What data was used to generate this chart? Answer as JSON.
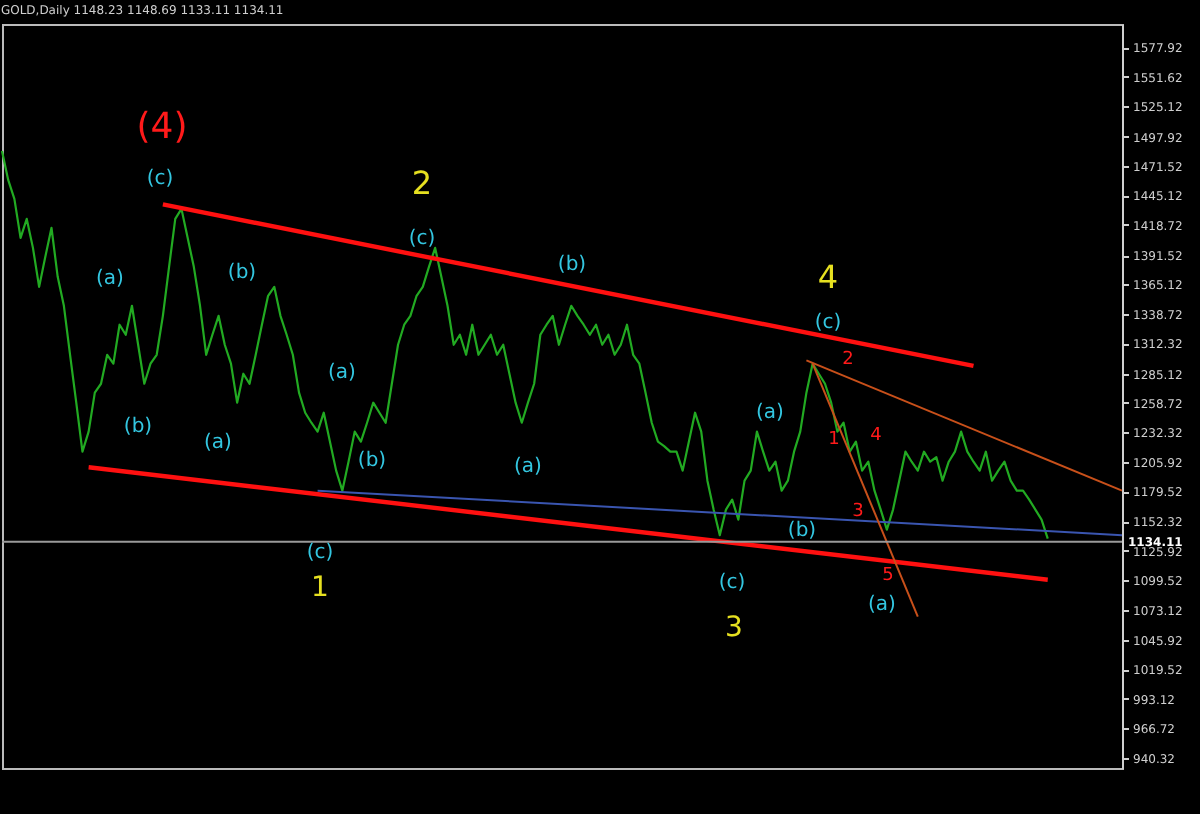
{
  "chart_data": {
    "type": "line",
    "title": "GOLD,Daily  1148.23 1148.69 1133.11 1134.11",
    "categories": [
      null,
      null,
      null,
      null,
      null,
      null,
      null,
      null,
      null,
      null,
      null,
      null,
      null,
      null,
      null,
      null,
      null,
      null,
      null,
      null,
      null,
      null,
      null,
      null,
      null,
      null,
      null,
      null,
      null,
      null,
      null,
      null,
      null,
      null,
      null,
      null,
      null,
      null,
      null,
      null,
      null,
      null,
      null,
      null,
      null,
      null,
      null,
      null,
      null,
      null,
      null,
      null,
      null,
      null,
      null,
      null,
      null,
      null,
      null,
      null,
      null,
      null,
      null,
      null,
      null,
      null,
      null,
      null,
      null,
      null,
      null,
      null,
      null,
      null,
      null,
      null,
      null,
      null,
      null,
      null,
      null,
      null,
      null,
      null,
      null,
      null,
      null,
      null,
      null,
      null,
      null,
      null,
      null,
      null,
      null,
      null,
      null,
      null,
      null,
      null,
      null,
      null,
      null,
      null,
      null,
      null,
      null,
      null,
      null,
      null,
      null,
      null,
      null,
      null,
      null,
      null,
      null,
      null,
      null,
      null,
      null,
      null,
      null,
      null,
      null,
      null,
      null,
      null,
      null,
      null,
      null,
      null,
      null,
      null,
      null,
      null,
      null,
      null,
      null,
      null,
      null,
      null,
      null,
      null,
      null,
      null,
      null,
      null,
      null,
      null,
      null,
      null,
      null,
      null,
      null,
      null,
      null,
      null,
      null,
      null,
      null,
      null,
      null,
      null,
      null,
      null,
      null,
      null,
      null,
      null,
      null,
      null,
      null,
      null,
      null,
      null,
      null,
      null,
      null,
      null,
      null,
      null
    ],
    "series": [
      {
        "color": "#22aa22",
        "values": [
          1485,
          1459,
          1442,
          1407,
          1424,
          1398,
          1363,
          1390,
          1416,
          1372,
          1346,
          1302,
          1259,
          1215,
          1233,
          1268,
          1276,
          1302,
          1294,
          1329,
          1320,
          1346,
          1311,
          1276,
          1294,
          1302,
          1337,
          1381,
          1424,
          1433,
          1407,
          1381,
          1346,
          1302,
          1320,
          1337,
          1311,
          1294,
          1259,
          1285,
          1276,
          1302,
          1329,
          1355,
          1363,
          1337,
          1320,
          1302,
          1268,
          1250,
          1241,
          1233,
          1250,
          1224,
          1198,
          1180,
          1206,
          1233,
          1224,
          1241,
          1259,
          1250,
          1241,
          1276,
          1311,
          1329,
          1337,
          1355,
          1363,
          1381,
          1398,
          1372,
          1346,
          1311,
          1320,
          1302,
          1329,
          1302,
          1311,
          1320,
          1302,
          1311,
          1285,
          1259,
          1241,
          1259,
          1276,
          1320,
          1329,
          1337,
          1311,
          1329,
          1346,
          1337,
          1329,
          1320,
          1329,
          1311,
          1320,
          1302,
          1311,
          1329,
          1302,
          1294,
          1268,
          1241,
          1224,
          1220,
          1215,
          1215,
          1198,
          1224,
          1250,
          1233,
          1189,
          1163,
          1140,
          1163,
          1172,
          1154,
          1189,
          1198,
          1233,
          1215,
          1198,
          1206,
          1180,
          1189,
          1215,
          1233,
          1268,
          1294,
          1285,
          1276,
          1259,
          1233,
          1241,
          1215,
          1224,
          1198,
          1206,
          1180,
          1163,
          1145,
          1163,
          1189,
          1215,
          1206,
          1198,
          1215,
          1206,
          1210,
          1189,
          1206,
          1215,
          1233,
          1215,
          1206,
          1198,
          1215,
          1189,
          1198,
          1206,
          1189,
          1180,
          1180,
          1172,
          1163,
          1154,
          1137,
          null,
          null,
          null,
          null,
          null,
          null,
          null,
          null,
          null,
          null,
          null,
          null
        ]
      },
      {
        "type": "line",
        "color": "#ff1010",
        "values": [
          null,
          null,
          null,
          null,
          null,
          null,
          null,
          null,
          null,
          null,
          null,
          null,
          null,
          null,
          null,
          null,
          null,
          null,
          null,
          null,
          null,
          null,
          null,
          null,
          null,
          null,
          1437,
          null,
          null,
          null,
          null,
          null,
          null,
          null,
          null,
          null,
          null,
          null,
          null,
          null,
          null,
          null,
          null,
          null,
          null,
          null,
          null,
          null,
          null,
          null,
          null,
          null,
          null,
          null,
          null,
          null,
          null,
          null,
          null,
          null,
          null,
          null,
          null,
          null,
          null,
          null,
          null,
          null,
          null,
          null,
          null,
          null,
          null,
          null,
          null,
          null,
          null,
          null,
          null,
          null,
          null,
          null,
          null,
          null,
          null,
          null,
          null,
          null,
          null,
          null,
          null,
          null,
          null,
          null,
          null,
          null,
          null,
          null,
          null,
          null,
          null,
          null,
          null,
          null,
          null,
          null,
          null,
          null,
          null,
          null,
          null,
          null,
          null,
          null,
          null,
          null,
          null,
          null,
          null,
          null,
          null,
          null,
          null,
          null,
          null,
          null,
          null,
          null,
          null,
          null,
          null,
          null,
          null,
          null,
          null,
          null,
          null,
          null,
          null,
          null,
          null,
          null,
          null,
          null,
          null,
          null,
          null,
          null,
          null,
          null,
          null,
          null,
          null,
          null,
          null,
          null,
          null,
          1292,
          null,
          null,
          null,
          null,
          null,
          null,
          null,
          null,
          null,
          null,
          null,
          null,
          null,
          null,
          null,
          null,
          null,
          null,
          null,
          null,
          null,
          null,
          null,
          null
        ]
      },
      {
        "type": "line",
        "color": "#ff1010",
        "values": [
          null,
          null,
          null,
          null,
          null,
          null,
          null,
          null,
          null,
          null,
          null,
          null,
          null,
          null,
          1201,
          null,
          null,
          null,
          null,
          null,
          null,
          null,
          null,
          null,
          null,
          null,
          null,
          null,
          null,
          null,
          null,
          null,
          null,
          null,
          null,
          null,
          null,
          null,
          null,
          null,
          null,
          null,
          null,
          null,
          null,
          null,
          null,
          null,
          null,
          null,
          null,
          null,
          null,
          null,
          null,
          null,
          null,
          null,
          null,
          null,
          null,
          null,
          null,
          null,
          null,
          null,
          null,
          null,
          null,
          null,
          null,
          null,
          null,
          null,
          null,
          null,
          null,
          null,
          null,
          null,
          null,
          null,
          null,
          null,
          null,
          null,
          null,
          null,
          null,
          null,
          null,
          null,
          null,
          null,
          null,
          null,
          null,
          null,
          null,
          null,
          null,
          null,
          null,
          null,
          null,
          null,
          null,
          null,
          null,
          null,
          null,
          null,
          null,
          null,
          null,
          null,
          null,
          null,
          null,
          null,
          null,
          null,
          null,
          null,
          null,
          null,
          null,
          null,
          null,
          null,
          null,
          null,
          null,
          null,
          null,
          null,
          null,
          null,
          null,
          null,
          null,
          null,
          null,
          null,
          null,
          null,
          null,
          null,
          null,
          null,
          null,
          null,
          null,
          null,
          null,
          null,
          null,
          null,
          null,
          null,
          null,
          null,
          null,
          null,
          null,
          null,
          null,
          null,
          null,
          1100,
          null,
          null,
          null,
          null,
          null,
          null,
          null,
          null,
          null,
          null,
          null,
          null
        ]
      },
      {
        "type": "line",
        "color": "#3a55b0",
        "values": [
          null,
          null,
          null,
          null,
          null,
          null,
          null,
          null,
          null,
          null,
          null,
          null,
          null,
          null,
          null,
          null,
          null,
          null,
          null,
          null,
          null,
          null,
          null,
          null,
          null,
          null,
          null,
          null,
          null,
          null,
          null,
          null,
          null,
          null,
          null,
          null,
          null,
          null,
          null,
          null,
          null,
          null,
          null,
          null,
          null,
          null,
          null,
          null,
          null,
          null,
          null,
          1180,
          null,
          null,
          null,
          null,
          null,
          null,
          null,
          null,
          null,
          null,
          null,
          null,
          null,
          null,
          null,
          null,
          null,
          null,
          null,
          null,
          null,
          null,
          null,
          null,
          null,
          null,
          null,
          null,
          null,
          null,
          null,
          null,
          null,
          null,
          null,
          null,
          null,
          null,
          null,
          null,
          null,
          null,
          null,
          null,
          null,
          null,
          null,
          null,
          null,
          null,
          null,
          null,
          null,
          null,
          null,
          null,
          null,
          null,
          null,
          null,
          null,
          null,
          null,
          null,
          null,
          null,
          null,
          null,
          null,
          null,
          null,
          null,
          null,
          null,
          null,
          null,
          null,
          null,
          null,
          null,
          null,
          null,
          null,
          null,
          null,
          null,
          null,
          null,
          null,
          null,
          null,
          null,
          null,
          null,
          null,
          null,
          null,
          null,
          null,
          null,
          null,
          null,
          null,
          null,
          null,
          null,
          null,
          null,
          null,
          null,
          null,
          null,
          null,
          null,
          null,
          null,
          null,
          null,
          null,
          null,
          null,
          null,
          null,
          null,
          null,
          null,
          null,
          null,
          null,
          1140
        ]
      },
      {
        "color": "#c8501a",
        "values": [
          null,
          null,
          null,
          null,
          null,
          null,
          null,
          null,
          null,
          null,
          null,
          null,
          null,
          null,
          null,
          null,
          null,
          null,
          null,
          null,
          null,
          null,
          null,
          null,
          null,
          null,
          null,
          null,
          null,
          null,
          null,
          null,
          null,
          null,
          null,
          null,
          null,
          null,
          null,
          null,
          null,
          null,
          null,
          null,
          null,
          null,
          null,
          null,
          null,
          null,
          null,
          null,
          null,
          null,
          null,
          null,
          null,
          null,
          null,
          null,
          null,
          null,
          null,
          null,
          null,
          null,
          null,
          null,
          null,
          null,
          null,
          null,
          null,
          null,
          null,
          null,
          null,
          null,
          null,
          null,
          null,
          null,
          null,
          null,
          null,
          null,
          null,
          null,
          null,
          null,
          null,
          null,
          null,
          null,
          null,
          null,
          null,
          null,
          null,
          null,
          null,
          null,
          null,
          null,
          null,
          null,
          null,
          null,
          null,
          null,
          null,
          null,
          null,
          null,
          null,
          null,
          null,
          null,
          null,
          null,
          null,
          null,
          null,
          null,
          null,
          null,
          null,
          null,
          null,
          null,
          null,
          1294,
          null,
          null,
          null,
          null,
          null,
          null,
          null,
          null,
          null,
          null,
          null,
          null,
          null,
          null,
          null,
          null,
          1067,
          null,
          null,
          null,
          null,
          null,
          null,
          null,
          null,
          null,
          null,
          null,
          null,
          null,
          null,
          null,
          null,
          null,
          null,
          null,
          null,
          null,
          null,
          null,
          null,
          null,
          null,
          null,
          null,
          null,
          null,
          null,
          null,
          null
        ]
      },
      {
        "color": "#c8501a",
        "values": [
          null,
          null,
          null,
          null,
          null,
          null,
          null,
          null,
          null,
          null,
          null,
          null,
          null,
          null,
          null,
          null,
          null,
          null,
          null,
          null,
          null,
          null,
          null,
          null,
          null,
          null,
          null,
          null,
          null,
          null,
          null,
          null,
          null,
          null,
          null,
          null,
          null,
          null,
          null,
          null,
          null,
          null,
          null,
          null,
          null,
          null,
          null,
          null,
          null,
          null,
          null,
          null,
          null,
          null,
          null,
          null,
          null,
          null,
          null,
          null,
          null,
          null,
          null,
          null,
          null,
          null,
          null,
          null,
          null,
          null,
          null,
          null,
          null,
          null,
          null,
          null,
          null,
          null,
          null,
          null,
          null,
          null,
          null,
          null,
          null,
          null,
          null,
          null,
          null,
          null,
          null,
          null,
          null,
          null,
          null,
          null,
          null,
          null,
          null,
          null,
          null,
          null,
          null,
          null,
          null,
          null,
          null,
          null,
          null,
          null,
          null,
          null,
          null,
          null,
          null,
          null,
          null,
          null,
          null,
          null,
          null,
          null,
          null,
          null,
          null,
          null,
          null,
          null,
          null,
          null,
          1297,
          null,
          null,
          null,
          null,
          null,
          null,
          null,
          null,
          null,
          null,
          null,
          null,
          null,
          null,
          null,
          null,
          null,
          null,
          null,
          null,
          null,
          null,
          null,
          null,
          null,
          null,
          null,
          null,
          null,
          null,
          null,
          null,
          null,
          null,
          null,
          null,
          null,
          null,
          null,
          null,
          null,
          null,
          null,
          null,
          null,
          null,
          null,
          null,
          null,
          null,
          1180
        ]
      }
    ],
    "ylim": [
      931,
      1599
    ],
    "yticks": [
      940.32,
      966.72,
      993.12,
      1019.52,
      1045.92,
      1073.12,
      1099.52,
      1125.92,
      1152.32,
      1179.52,
      1205.92,
      1232.32,
      1258.72,
      1285.12,
      1312.32,
      1338.72,
      1365.12,
      1391.52,
      1418.72,
      1445.12,
      1471.52,
      1497.92,
      1525.12,
      1551.62,
      1577.92
    ],
    "ref_lines": [
      {
        "axis": "y",
        "value": 1134.11,
        "label": "1134.11",
        "color": "#9a9a9a"
      }
    ],
    "annotations": [
      "(4)",
      "(c)",
      "2",
      "(c)",
      "(b)",
      "(a)",
      "(b)",
      "(b)",
      "(a)",
      "(a)",
      "(b)",
      "(c)",
      "1",
      "(a)",
      "4",
      "(c)",
      "(a)",
      "(b)",
      "(c)",
      "3",
      "(a)",
      "2",
      "1",
      "4",
      "3",
      "5"
    ],
    "grid": false,
    "legend": false
  }
}
